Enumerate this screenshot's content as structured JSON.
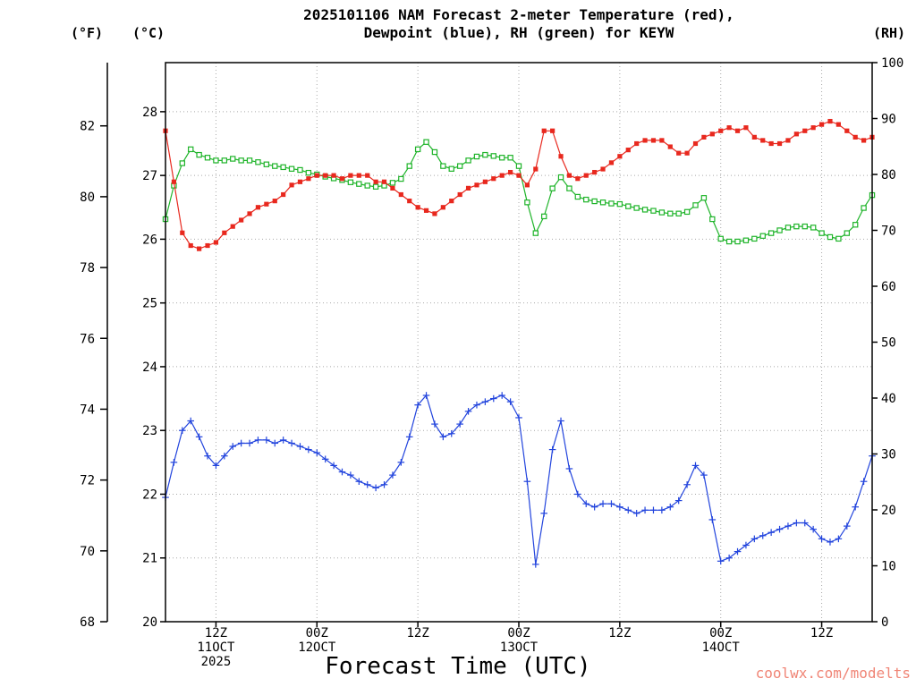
{
  "header": {
    "title_line1": "2025101106 NAM Forecast 2-meter Temperature (red),",
    "title_line2": "Dewpoint (blue), RH (green) for KEYW"
  },
  "axis_units": {
    "fahrenheit": "(°F)",
    "celsius": "(°C)",
    "rh": "(RH)"
  },
  "watermark": "coolwx.com/modelts",
  "colors": {
    "temperature": "#e8281e",
    "dewpoint": "#2244dd",
    "rh": "#1fb42a",
    "grid": "#a9a9a9",
    "watermark": "#f08576",
    "axis": "#000000"
  },
  "chart_data": {
    "type": "line",
    "title": "2025101106 NAM Forecast 2-meter Temperature (red), Dewpoint (blue), RH (green) for KEYW",
    "xlabel": "Forecast Time (UTC)",
    "grid": {
      "style": "dotted",
      "color": "#a9a9a9"
    },
    "x_hours": {
      "start": 0,
      "step": 1,
      "count": 85
    },
    "x_ticks": [
      {
        "hour": 6,
        "label": "12Z"
      },
      {
        "hour": 18,
        "label": "00Z"
      },
      {
        "hour": 30,
        "label": "12Z"
      },
      {
        "hour": 42,
        "label": "00Z"
      },
      {
        "hour": 54,
        "label": "12Z"
      },
      {
        "hour": 66,
        "label": "00Z"
      },
      {
        "hour": 78,
        "label": "12Z"
      }
    ],
    "x_dates": [
      {
        "hour": 6,
        "label": "11OCT",
        "sub": "2025"
      },
      {
        "hour": 18,
        "label": "12OCT"
      },
      {
        "hour": 42,
        "label": "13OCT"
      },
      {
        "hour": 66,
        "label": "14OCT"
      }
    ],
    "axes_y": {
      "celsius": {
        "side": "left",
        "min": 20,
        "max": 28.77,
        "ticks": [
          20,
          21,
          22,
          23,
          24,
          25,
          26,
          27,
          28
        ]
      },
      "fahrenheit": {
        "side": "far-left",
        "ticks": [
          68,
          70,
          72,
          74,
          76,
          78,
          80,
          82
        ]
      },
      "rh": {
        "side": "right",
        "min": 0,
        "max": 100,
        "ticks": [
          0,
          10,
          20,
          30,
          40,
          50,
          60,
          70,
          80,
          90,
          100
        ]
      }
    },
    "series": [
      {
        "id": "rh",
        "name": "RH (green)",
        "axis": "rh",
        "marker": "open-square",
        "color": "#1fb42a",
        "values": [
          72,
          78,
          82,
          84.5,
          83.5,
          83,
          82.5,
          82.5,
          82.8,
          82.5,
          82.5,
          82.2,
          81.8,
          81.5,
          81.3,
          81,
          80.8,
          80.3,
          80,
          79.6,
          79.3,
          79,
          78.6,
          78.3,
          78,
          77.8,
          78,
          78.5,
          79.2,
          81.5,
          84.5,
          85.8,
          84,
          81.5,
          81,
          81.5,
          82.5,
          83.2,
          83.5,
          83.3,
          83,
          83,
          81.5,
          75,
          69.5,
          72.5,
          77.5,
          79.5,
          77.5,
          76,
          75.5,
          75.2,
          75,
          74.8,
          74.7,
          74.3,
          74,
          73.7,
          73.5,
          73.2,
          73,
          73,
          73.3,
          74.5,
          75.8,
          72,
          68.5,
          68,
          68,
          68.2,
          68.5,
          69,
          69.5,
          70,
          70.5,
          70.7,
          70.7,
          70.5,
          69.5,
          68.8,
          68.5,
          69.5,
          71,
          74,
          76.3
        ]
      },
      {
        "id": "temperature",
        "name": "2-meter Temperature (red)",
        "axis": "celsius",
        "marker": "filled-square",
        "color": "#e8281e",
        "values": [
          27.7,
          26.9,
          26.1,
          25.9,
          25.85,
          25.9,
          25.95,
          26.1,
          26.2,
          26.3,
          26.4,
          26.5,
          26.55,
          26.6,
          26.7,
          26.85,
          26.9,
          26.95,
          27.0,
          27.0,
          27.0,
          26.95,
          27.0,
          27.0,
          27.0,
          26.9,
          26.9,
          26.8,
          26.7,
          26.6,
          26.5,
          26.45,
          26.4,
          26.5,
          26.6,
          26.7,
          26.8,
          26.85,
          26.9,
          26.95,
          27.0,
          27.05,
          27.0,
          26.85,
          27.1,
          27.7,
          27.7,
          27.3,
          27.0,
          26.95,
          27.0,
          27.05,
          27.1,
          27.2,
          27.3,
          27.4,
          27.5,
          27.55,
          27.55,
          27.55,
          27.45,
          27.35,
          27.35,
          27.5,
          27.6,
          27.65,
          27.7,
          27.75,
          27.7,
          27.75,
          27.6,
          27.55,
          27.5,
          27.5,
          27.55,
          27.65,
          27.7,
          27.75,
          27.8,
          27.85,
          27.8,
          27.7,
          27.6,
          27.55,
          27.6
        ]
      },
      {
        "id": "dewpoint",
        "name": "Dewpoint (blue)",
        "axis": "celsius",
        "marker": "plus",
        "color": "#2244dd",
        "values": [
          21.95,
          22.5,
          23.0,
          23.15,
          22.9,
          22.6,
          22.45,
          22.6,
          22.75,
          22.8,
          22.8,
          22.85,
          22.85,
          22.8,
          22.85,
          22.8,
          22.75,
          22.7,
          22.65,
          22.55,
          22.45,
          22.35,
          22.3,
          22.2,
          22.15,
          22.1,
          22.15,
          22.3,
          22.5,
          22.9,
          23.4,
          23.55,
          23.1,
          22.9,
          22.95,
          23.1,
          23.3,
          23.4,
          23.45,
          23.5,
          23.55,
          23.45,
          23.2,
          22.2,
          20.9,
          21.7,
          22.7,
          23.15,
          22.4,
          22.0,
          21.85,
          21.8,
          21.85,
          21.85,
          21.8,
          21.75,
          21.7,
          21.75,
          21.75,
          21.75,
          21.8,
          21.9,
          22.15,
          22.45,
          22.3,
          21.6,
          20.95,
          21.0,
          21.1,
          21.2,
          21.3,
          21.35,
          21.4,
          21.45,
          21.5,
          21.55,
          21.55,
          21.45,
          21.3,
          21.25,
          21.3,
          21.5,
          21.8,
          22.2,
          22.6
        ]
      }
    ]
  }
}
